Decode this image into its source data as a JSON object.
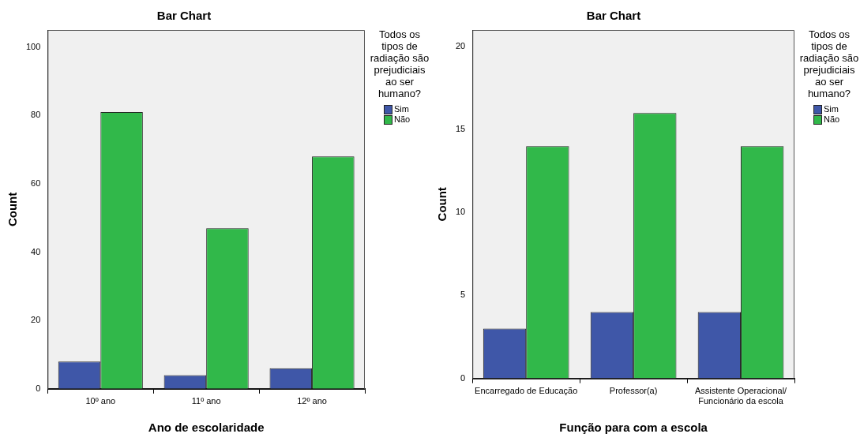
{
  "chart_data": [
    {
      "type": "bar",
      "title": "Bar Chart",
      "xlabel": "Ano de escolaridade",
      "ylabel": "Count",
      "legend_title": "Todos os tipos de radiação são prejudiciais ao ser humano?",
      "legend": "top right",
      "categories": [
        "10º ano",
        "11º ano",
        "12º ano"
      ],
      "series": [
        {
          "name": "Sim",
          "color": "#3f57a8",
          "values": [
            8,
            4,
            6
          ]
        },
        {
          "name": "Não",
          "color": "#31b84a",
          "values": [
            81,
            47,
            68
          ]
        }
      ],
      "ylim": [
        0,
        105
      ],
      "yticks": [
        0,
        20,
        40,
        60,
        80,
        100
      ]
    },
    {
      "type": "bar",
      "title": "Bar Chart",
      "xlabel": "Função para com a escola",
      "ylabel": "Count",
      "legend_title": "Todos os tipos de radiação são prejudiciais ao ser humano?",
      "legend": "top right",
      "categories": [
        "Encarregado de Educação",
        "Professor(a)",
        "Assistente Operacional/ Funcionário da escola"
      ],
      "series": [
        {
          "name": "Sim",
          "color": "#3f57a8",
          "values": [
            3,
            4,
            4
          ]
        },
        {
          "name": "Não",
          "color": "#31b84a",
          "values": [
            14,
            16,
            14
          ]
        }
      ],
      "ylim": [
        0,
        21
      ],
      "yticks": [
        0,
        5,
        10,
        15,
        20
      ]
    }
  ]
}
